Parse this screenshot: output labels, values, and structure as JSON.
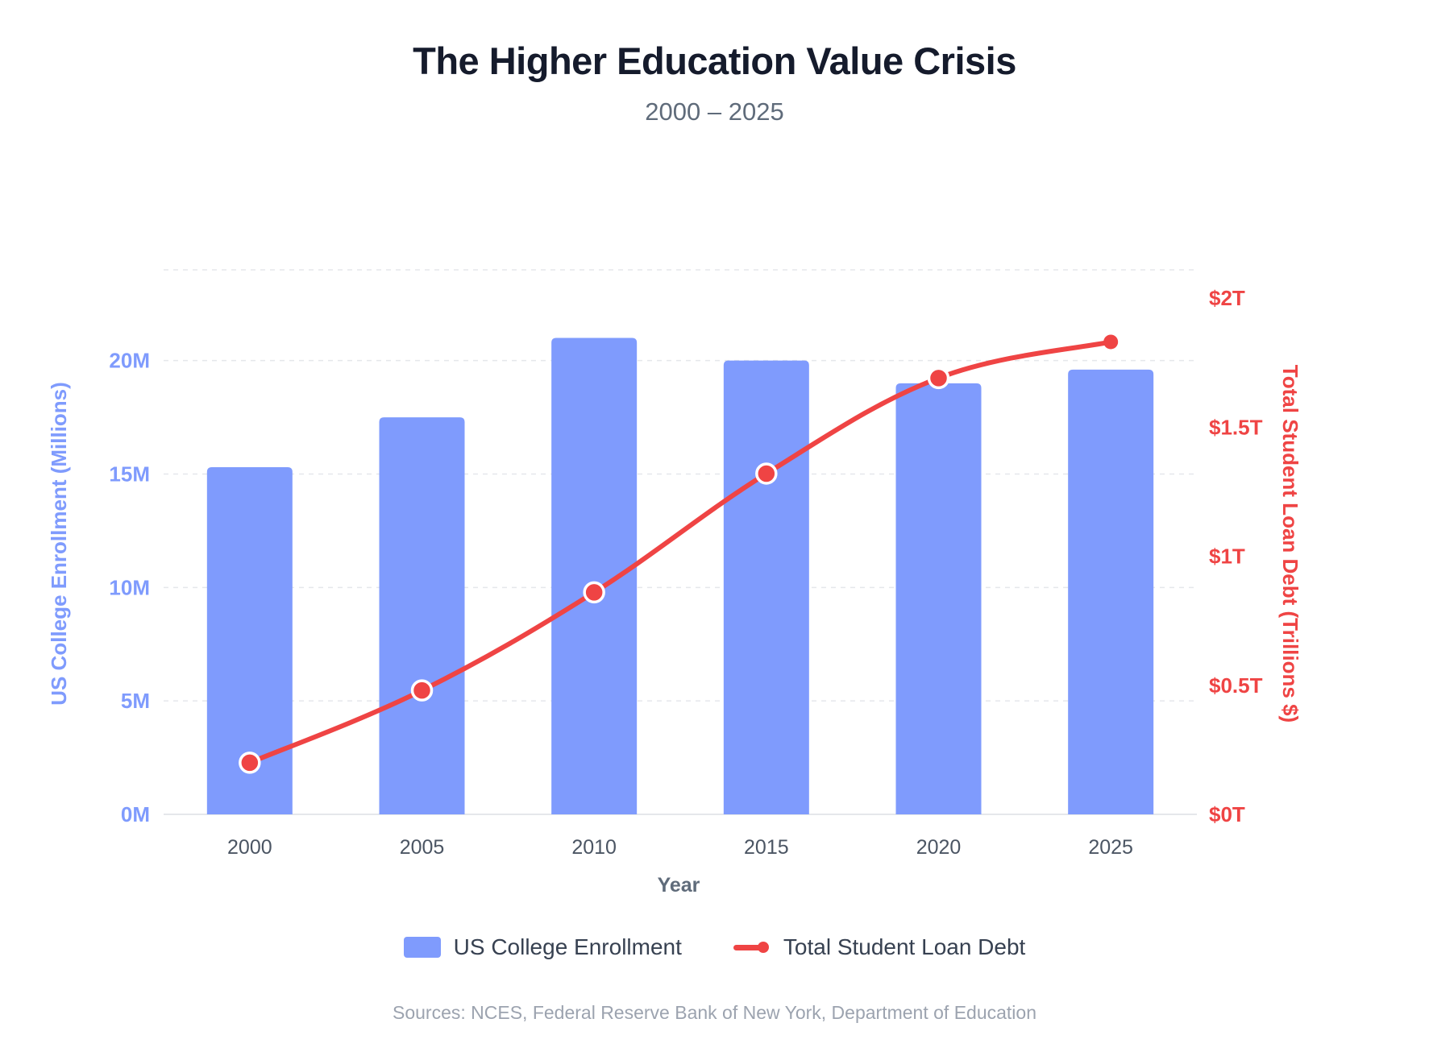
{
  "chart_data": {
    "type": "bar+line",
    "title": "The Higher Education Value Crisis",
    "subtitle": "2000 – 2025",
    "categories": [
      "2000",
      "2005",
      "2010",
      "2015",
      "2020",
      "2025"
    ],
    "xlabel": "Year",
    "series": [
      {
        "name": "US College Enrollment",
        "type": "bar",
        "axis": "left",
        "values": [
          15.3,
          17.5,
          21.0,
          20.0,
          19.0,
          19.6
        ],
        "color": "#7f9bfd"
      },
      {
        "name": "Total Student Loan Debt",
        "type": "line",
        "axis": "right",
        "values": [
          0.2,
          0.48,
          0.86,
          1.32,
          1.69,
          1.83
        ],
        "color": "#ef4444"
      }
    ],
    "y_left": {
      "label": "US College Enrollment (Millions)",
      "min": 0,
      "max": 24,
      "ticks": [
        0,
        5,
        10,
        15,
        20
      ],
      "tick_labels": [
        "0M",
        "5M",
        "10M",
        "15M",
        "20M"
      ],
      "color": "#7f9bfd"
    },
    "y_right": {
      "label": "Total Student Loan Debt (Trillions $)",
      "min": 0,
      "max": 2.1,
      "ticks": [
        0,
        0.5,
        1,
        1.5,
        2
      ],
      "tick_labels": [
        "$0T",
        "$0.5T",
        "$1T",
        "$1.5T",
        "$2T"
      ],
      "color": "#ef4444"
    },
    "grid": true,
    "legend": "bottom-center"
  },
  "legend": {
    "bars_label": "US College Enrollment",
    "line_label": "Total Student Loan Debt"
  },
  "source": "Sources: NCES, Federal Reserve Bank of New York, Department of Education"
}
